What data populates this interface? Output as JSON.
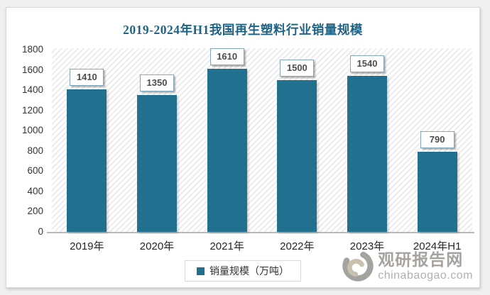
{
  "title": {
    "text": "2019-2024年H1我国再生塑料行业销量规模",
    "color": "#1f6487"
  },
  "chart_data": {
    "type": "bar",
    "title": "2019-2024年H1我国再生塑料行业销量规模",
    "categories": [
      "2019年",
      "2020年",
      "2021年",
      "2022年",
      "2023年",
      "2024年H1"
    ],
    "series": [
      {
        "name": "销量规模（万吨）",
        "values": [
          1410,
          1350,
          1610,
          1500,
          1540,
          790
        ]
      }
    ],
    "ylim": [
      0,
      1800
    ],
    "yticks": [
      0,
      200,
      400,
      600,
      800,
      1000,
      1200,
      1400,
      1600,
      1800
    ],
    "grid": false,
    "value_labels_shown": true,
    "legend_position": "bottom",
    "plot_background": "diagonal-hatch",
    "bar_color": "#21708f"
  },
  "legend": {
    "label": "销量规模（万吨）",
    "marker_color": "#21708f"
  },
  "watermark": {
    "site_name": "观研报告网",
    "site_url": "chinabaogao.com",
    "logo": "swirl-logo"
  },
  "colors": {
    "bar": "#21708f",
    "title_text": "#1f6487",
    "axis_text": "#333333",
    "x_label_text": "#262626",
    "value_text": "#4d4d4d",
    "value_box_border": "#7fa8be",
    "axis_line": "#b9b9b9",
    "watermark_name": "#a6a39e",
    "watermark_url": "#b3b0ab",
    "logo_gray": "#a3a3a0",
    "logo_beige": "#c9c1ae"
  }
}
